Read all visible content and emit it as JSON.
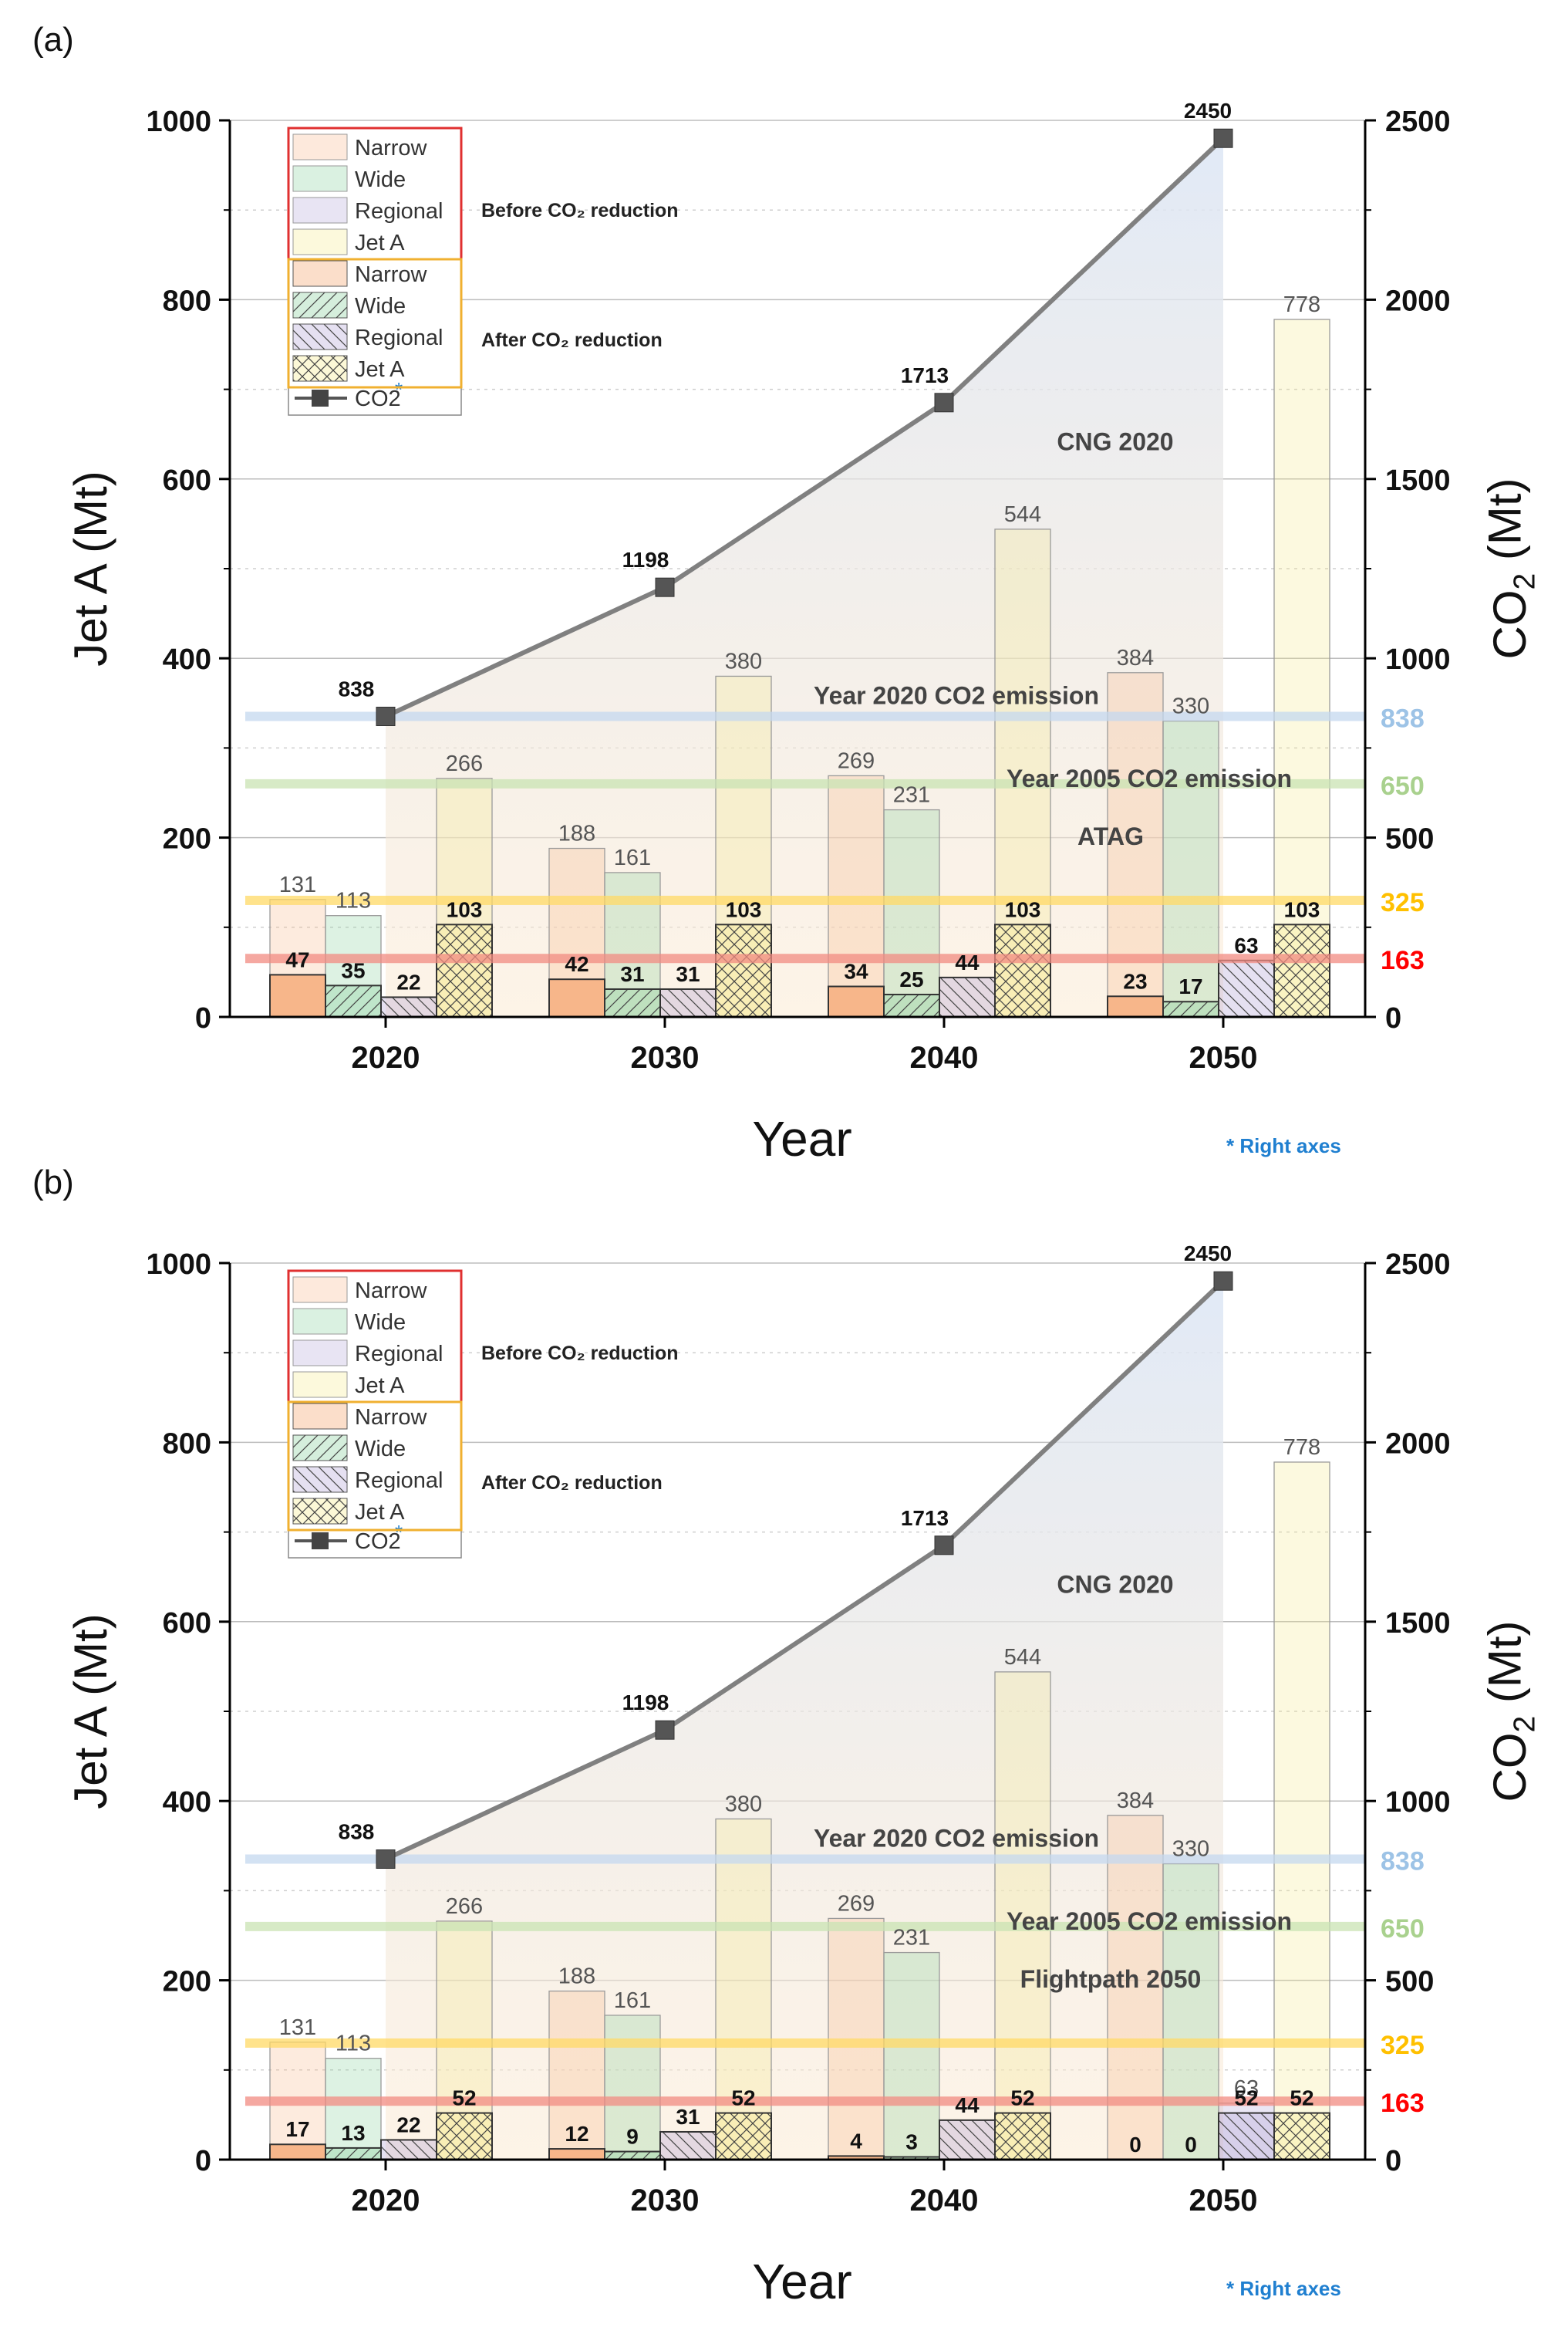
{
  "figure": {
    "footnote": "* Right axes",
    "legend_before_heading": "Before CO₂ reduction",
    "legend_after_heading": "After CO₂ reduction",
    "legend_before_items": [
      "Narrow",
      "Wide",
      "Regional",
      "Jet A"
    ],
    "legend_after_items": [
      "Narrow",
      "Wide",
      "Regional",
      "Jet A"
    ],
    "legend_co2_label": "CO2",
    "legend_co2_marker": "*",
    "colors": {
      "narrow": "#f7b68a",
      "wide": "#86cf9a",
      "regional": "#b4a7d6",
      "jeta": "#f5ea8c",
      "co2_line": "#808080",
      "co2_area": "#dce6f5",
      "band_2020": "#c4d8ef",
      "band_2005": "#c9e3b3",
      "band_325": "#ffd966",
      "band_163": "#f28b82",
      "label_838": "#9dc3e6",
      "label_650": "#a9d18e",
      "label_325": "#ffc000",
      "label_163": "#ff0000",
      "legend_before_border": "#e03030",
      "legend_after_border": "#f0b030",
      "footnote": "#1f7fd0"
    }
  },
  "chart_data": [
    {
      "type": "bar",
      "panel_label": "(a)",
      "xlabel": "Year",
      "ylabel": "Jet A (Mt)",
      "y2label": "CO2 (Mt)",
      "ylim": [
        0,
        1000
      ],
      "y2lim": [
        0,
        2500
      ],
      "yticks": [
        0,
        200,
        400,
        600,
        800,
        1000
      ],
      "y2ticks": [
        0,
        500,
        1000,
        1500,
        2000,
        2500
      ],
      "categories": [
        "2020",
        "2030",
        "2040",
        "2050"
      ],
      "series": [
        {
          "name": "Narrow (before CO2 reduction)",
          "key": "narrow",
          "style": "before",
          "values": [
            131,
            188,
            269,
            384
          ]
        },
        {
          "name": "Wide (before CO2 reduction)",
          "key": "wide",
          "style": "before",
          "values": [
            113,
            161,
            231,
            330
          ]
        },
        {
          "name": "Jet A (before CO2 reduction)",
          "key": "jeta",
          "style": "before",
          "values": [
            266,
            380,
            544,
            778
          ]
        },
        {
          "name": "Narrow (after CO2 reduction)",
          "key": "narrow",
          "style": "after",
          "values": [
            47,
            42,
            34,
            23
          ]
        },
        {
          "name": "Wide (after CO2 reduction)",
          "key": "wide",
          "style": "after",
          "values": [
            35,
            31,
            25,
            17
          ]
        },
        {
          "name": "Regional (after CO2 reduction)",
          "key": "regional",
          "style": "after",
          "values": [
            22,
            31,
            44,
            63
          ]
        },
        {
          "name": "Jet A (after CO2 reduction)",
          "key": "jeta",
          "style": "after",
          "values": [
            103,
            103,
            103,
            103
          ]
        }
      ],
      "co2": {
        "name": "CO2",
        "axis": "right",
        "x": [
          "2020",
          "2030",
          "2040",
          "2050"
        ],
        "values": [
          838,
          1198,
          1713,
          2450
        ]
      },
      "reference_lines": [
        {
          "value": 838,
          "label": "838",
          "text": "Year 2020 CO2 emission",
          "color_key": "band_2020",
          "label_color_key": "label_838"
        },
        {
          "value": 650,
          "label": "650",
          "text": "Year 2005 CO2 emission",
          "color_key": "band_2005",
          "label_color_key": "label_650"
        },
        {
          "value": 325,
          "label": "325",
          "text": "",
          "color_key": "band_325",
          "label_color_key": "label_325"
        },
        {
          "value": 163,
          "label": "163",
          "text": "",
          "color_key": "band_163",
          "label_color_key": "label_163"
        }
      ],
      "annotations": {
        "area_label": "CNG 2020",
        "target_label": "ATAG"
      }
    },
    {
      "type": "bar",
      "panel_label": "(b)",
      "xlabel": "Year",
      "ylabel": "Jet A (Mt)",
      "y2label": "CO2 (Mt)",
      "ylim": [
        0,
        1000
      ],
      "y2lim": [
        0,
        2500
      ],
      "yticks": [
        0,
        200,
        400,
        600,
        800,
        1000
      ],
      "y2ticks": [
        0,
        500,
        1000,
        1500,
        2000,
        2500
      ],
      "categories": [
        "2020",
        "2030",
        "2040",
        "2050"
      ],
      "series": [
        {
          "name": "Narrow (before CO2 reduction)",
          "key": "narrow",
          "style": "before",
          "values": [
            131,
            188,
            269,
            384
          ]
        },
        {
          "name": "Wide (before CO2 reduction)",
          "key": "wide",
          "style": "before",
          "values": [
            113,
            161,
            231,
            330
          ]
        },
        {
          "name": "Regional (before CO2 reduction)",
          "key": "regional",
          "style": "before",
          "values": [
            null,
            null,
            null,
            63
          ]
        },
        {
          "name": "Jet A (before CO2 reduction)",
          "key": "jeta",
          "style": "before",
          "values": [
            266,
            380,
            544,
            778
          ]
        },
        {
          "name": "Narrow (after CO2 reduction)",
          "key": "narrow",
          "style": "after",
          "values": [
            17,
            12,
            4,
            0
          ]
        },
        {
          "name": "Wide (after CO2 reduction)",
          "key": "wide",
          "style": "after",
          "values": [
            13,
            9,
            3,
            0
          ]
        },
        {
          "name": "Regional (after CO2 reduction)",
          "key": "regional",
          "style": "after",
          "values": [
            22,
            31,
            44,
            52
          ]
        },
        {
          "name": "Jet A (after CO2 reduction)",
          "key": "jeta",
          "style": "after",
          "values": [
            52,
            52,
            52,
            52
          ]
        }
      ],
      "co2": {
        "name": "CO2",
        "axis": "right",
        "x": [
          "2020",
          "2030",
          "2040",
          "2050"
        ],
        "values": [
          838,
          1198,
          1713,
          2450
        ]
      },
      "reference_lines": [
        {
          "value": 838,
          "label": "838",
          "text": "Year 2020 CO2 emission",
          "color_key": "band_2020",
          "label_color_key": "label_838"
        },
        {
          "value": 650,
          "label": "650",
          "text": "Year 2005 CO2 emission",
          "color_key": "band_2005",
          "label_color_key": "label_650"
        },
        {
          "value": 325,
          "label": "325",
          "text": "",
          "color_key": "band_325",
          "label_color_key": "label_325"
        },
        {
          "value": 163,
          "label": "163",
          "text": "",
          "color_key": "band_163",
          "label_color_key": "label_163"
        }
      ],
      "annotations": {
        "area_label": "CNG 2020",
        "target_label": "Flightpath 2050"
      }
    }
  ]
}
